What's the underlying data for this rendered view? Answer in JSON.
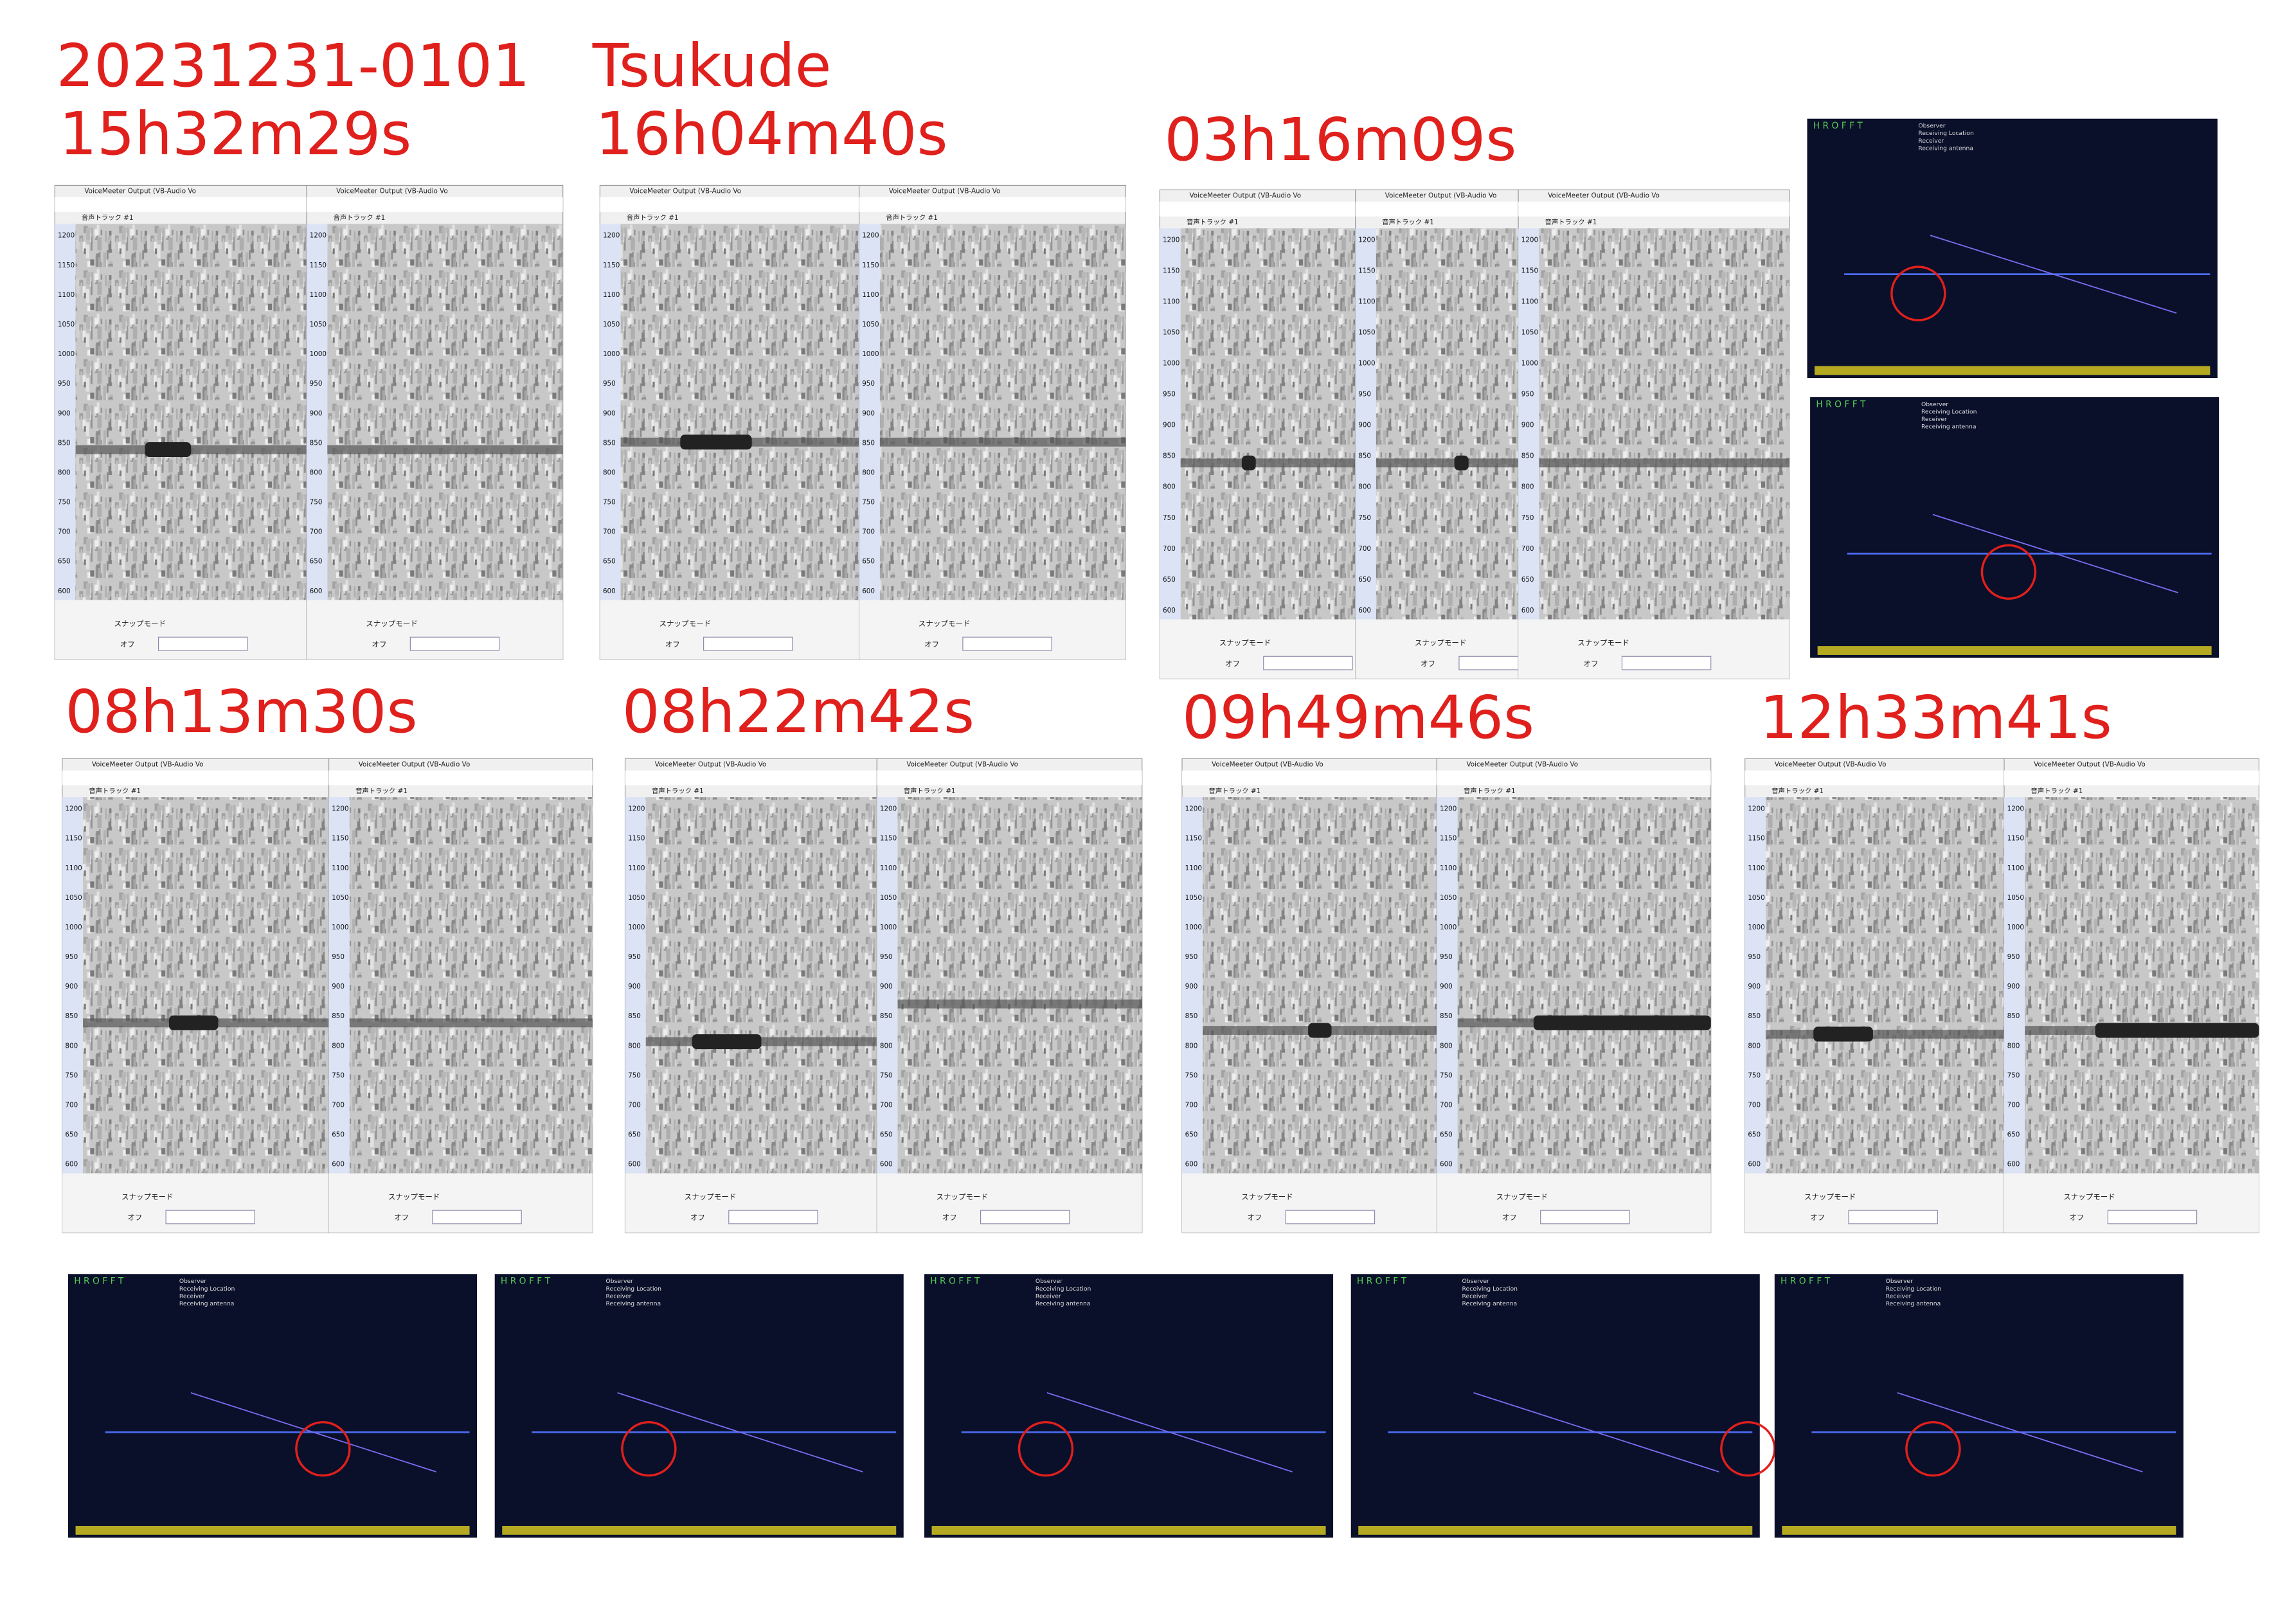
{
  "headings": {
    "date": "20231231-0101",
    "site": "Tsukude"
  },
  "events": [
    "15h32m29s",
    "16h04m40s",
    "03h16m09s",
    "08h13m30s",
    "08h22m42s",
    "09h49m46s",
    "12h33m41s"
  ],
  "spectrogram": {
    "device": "VoiceMeeter Output (VB-Audio Vo",
    "track": "音声トラック #1",
    "snap": "スナップモード",
    "off": "オフ",
    "freq_ticks": [
      1200,
      1150,
      1100,
      1050,
      1000,
      950,
      900,
      850,
      800,
      750,
      700,
      650,
      600
    ]
  },
  "hrofft": {
    "title": "H R O F F T",
    "observer": "Observer",
    "location": "Receiving Location",
    "receiver": "Receiver",
    "antenna": "Receiving antenna"
  }
}
